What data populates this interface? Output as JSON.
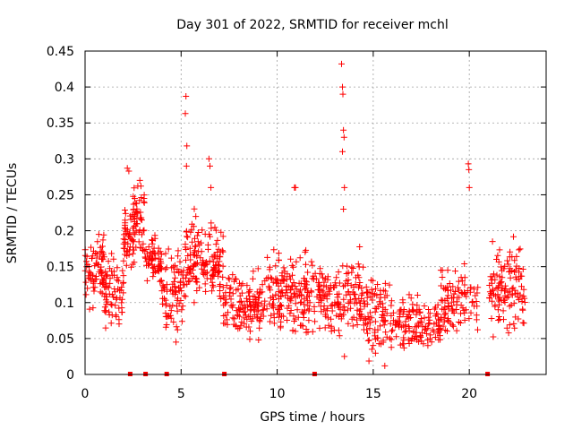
{
  "chart_data": {
    "type": "scatter",
    "title": "Day 301 of 2022, SRMTID for receiver mchl",
    "xlabel": "GPS time / hours",
    "ylabel": "SRMTID / TECUs",
    "xlim": [
      0,
      24
    ],
    "ylim": [
      0,
      0.45
    ],
    "x_ticks": [
      0,
      5,
      10,
      15,
      20
    ],
    "x_tick_labels": [
      "0",
      "5",
      "10",
      "15",
      "20"
    ],
    "y_ticks": [
      0,
      0.05,
      0.1,
      0.15,
      0.2,
      0.25,
      0.3,
      0.35,
      0.4,
      0.45
    ],
    "y_tick_labels": [
      "0",
      "0.05",
      "0.1",
      "0.15",
      "0.2",
      "0.25",
      "0.3",
      "0.35",
      "0.4",
      "0.45"
    ],
    "grid": true,
    "marker": "plus",
    "color": "#ff0000",
    "zero_markers_x": [
      2.35,
      3.15,
      4.25,
      7.25,
      11.95,
      20.95
    ],
    "spikes": [
      {
        "x": 13.35,
        "y": 0.432
      },
      {
        "x": 13.4,
        "y": 0.4
      },
      {
        "x": 13.42,
        "y": 0.39
      },
      {
        "x": 13.45,
        "y": 0.34
      },
      {
        "x": 13.48,
        "y": 0.33
      },
      {
        "x": 13.4,
        "y": 0.31
      },
      {
        "x": 13.5,
        "y": 0.26
      },
      {
        "x": 13.45,
        "y": 0.23
      },
      {
        "x": 5.25,
        "y": 0.387
      },
      {
        "x": 5.22,
        "y": 0.363
      },
      {
        "x": 5.3,
        "y": 0.318
      },
      {
        "x": 5.28,
        "y": 0.29
      },
      {
        "x": 6.45,
        "y": 0.3
      },
      {
        "x": 6.5,
        "y": 0.29
      },
      {
        "x": 6.55,
        "y": 0.26
      },
      {
        "x": 2.2,
        "y": 0.287
      },
      {
        "x": 2.28,
        "y": 0.283
      },
      {
        "x": 2.85,
        "y": 0.27
      },
      {
        "x": 19.95,
        "y": 0.293
      },
      {
        "x": 19.98,
        "y": 0.285
      },
      {
        "x": 20.0,
        "y": 0.26
      },
      {
        "x": 10.9,
        "y": 0.26
      },
      {
        "x": 10.95,
        "y": 0.26
      },
      {
        "x": 13.5,
        "y": 0.025
      },
      {
        "x": 15.6,
        "y": 0.012
      }
    ],
    "segments": [
      {
        "x_start": 0.0,
        "x_end": 1.0,
        "mean": 0.14,
        "spread": 0.045,
        "n": 75
      },
      {
        "x_start": 1.0,
        "x_end": 2.0,
        "mean": 0.115,
        "spread": 0.045,
        "n": 70
      },
      {
        "x_start": 2.0,
        "x_end": 2.5,
        "mean": 0.19,
        "spread": 0.05,
        "n": 45
      },
      {
        "x_start": 2.5,
        "x_end": 3.1,
        "mean": 0.215,
        "spread": 0.045,
        "n": 55
      },
      {
        "x_start": 3.1,
        "x_end": 4.0,
        "mean": 0.16,
        "spread": 0.03,
        "n": 60
      },
      {
        "x_start": 4.0,
        "x_end": 5.2,
        "mean": 0.12,
        "spread": 0.045,
        "n": 80
      },
      {
        "x_start": 5.2,
        "x_end": 6.3,
        "mean": 0.165,
        "spread": 0.05,
        "n": 85
      },
      {
        "x_start": 6.3,
        "x_end": 7.2,
        "mean": 0.15,
        "spread": 0.055,
        "n": 65
      },
      {
        "x_start": 7.2,
        "x_end": 9.0,
        "mean": 0.095,
        "spread": 0.035,
        "n": 110
      },
      {
        "x_start": 9.0,
        "x_end": 10.5,
        "mean": 0.115,
        "spread": 0.045,
        "n": 95
      },
      {
        "x_start": 10.5,
        "x_end": 11.5,
        "mean": 0.11,
        "spread": 0.05,
        "n": 70
      },
      {
        "x_start": 11.5,
        "x_end": 13.0,
        "mean": 0.105,
        "spread": 0.045,
        "n": 90
      },
      {
        "x_start": 13.0,
        "x_end": 14.5,
        "mean": 0.11,
        "spread": 0.045,
        "n": 90
      },
      {
        "x_start": 14.5,
        "x_end": 16.0,
        "mean": 0.085,
        "spread": 0.045,
        "n": 90
      },
      {
        "x_start": 16.0,
        "x_end": 18.5,
        "mean": 0.07,
        "spread": 0.03,
        "n": 130
      },
      {
        "x_start": 18.5,
        "x_end": 20.5,
        "mean": 0.1,
        "spread": 0.045,
        "n": 100
      },
      {
        "x_start": 21.0,
        "x_end": 21.8,
        "mean": 0.12,
        "spread": 0.05,
        "n": 55
      },
      {
        "x_start": 21.8,
        "x_end": 22.9,
        "mean": 0.12,
        "spread": 0.055,
        "n": 70
      }
    ]
  }
}
